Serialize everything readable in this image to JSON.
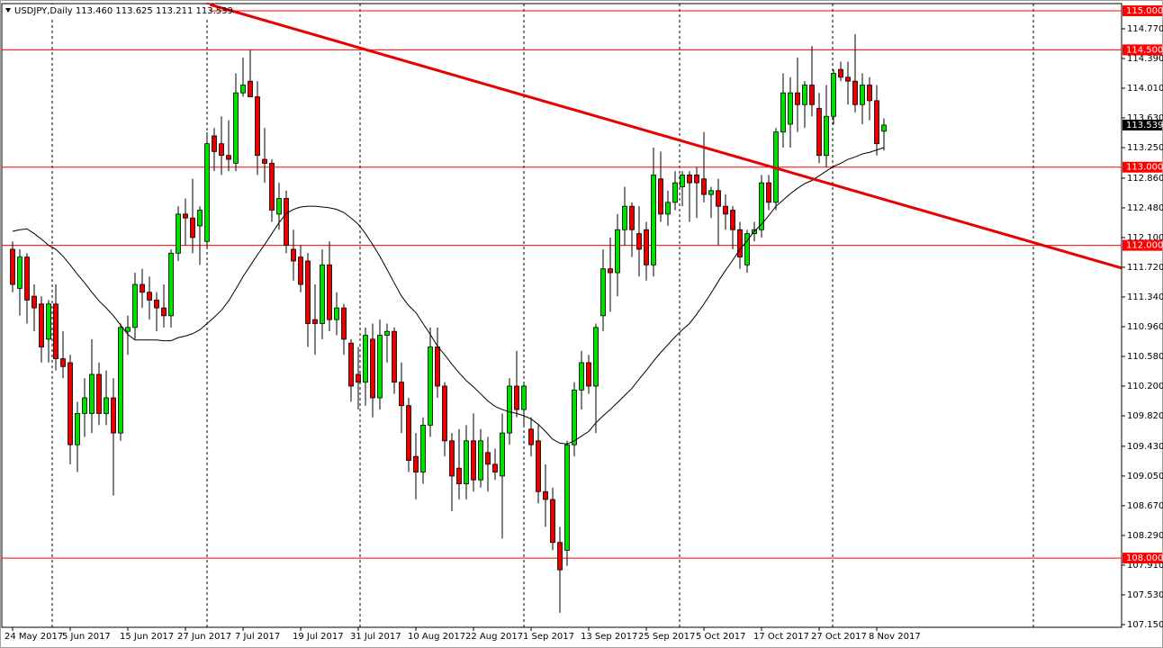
{
  "chart_data": {
    "type": "candlestick",
    "title": "USDJPY,Daily  113.460 113.625 113.211 113.539",
    "categories": [
      "24 May 2017",
      null,
      null,
      null,
      null,
      null,
      null,
      null,
      "5 Jun 2017",
      null,
      null,
      null,
      null,
      null,
      null,
      null,
      "15 Jun 2017",
      null,
      null,
      null,
      null,
      null,
      null,
      null,
      "27 Jun 2017",
      null,
      null,
      null,
      null,
      null,
      null,
      null,
      "7 Jul 2017",
      null,
      null,
      null,
      null,
      null,
      null,
      null,
      "19 Jul 2017",
      null,
      null,
      null,
      null,
      null,
      null,
      null,
      "31 Jul 2017",
      null,
      null,
      null,
      null,
      null,
      null,
      null,
      "10 Aug 2017",
      null,
      null,
      null,
      null,
      null,
      null,
      null,
      "22 Aug 2017",
      null,
      null,
      null,
      null,
      null,
      null,
      null,
      "1 Sep 2017",
      null,
      null,
      null,
      null,
      null,
      null,
      null,
      "13 Sep 2017",
      null,
      null,
      null,
      null,
      null,
      null,
      null,
      "25 Sep 2017",
      null,
      null,
      null,
      null,
      null,
      null,
      null,
      "5 Oct 2017",
      null,
      null,
      null,
      null,
      null,
      null,
      null,
      "17 Oct 2017",
      null,
      null,
      null,
      null,
      null,
      null,
      null,
      "27 Oct 2017",
      null,
      null,
      null,
      null,
      null,
      null,
      null,
      "8 Nov 2017",
      null
    ],
    "open": [
      111.95,
      111.45,
      111.85,
      111.35,
      111.25,
      110.8,
      111.25,
      110.55,
      110.5,
      109.45,
      109.85,
      109.85,
      110.35,
      109.85,
      110.05,
      109.6,
      110.9,
      110.95,
      111.5,
      111.4,
      111.3,
      111.2,
      111.1,
      111.9,
      112.4,
      112.35,
      112.25,
      112.05,
      113.4,
      113.3,
      113.15,
      113.05,
      113.95,
      114.1,
      113.9,
      113.1,
      113.05,
      112.4,
      112.6,
      111.95,
      111.85,
      111.8,
      111.05,
      111.0,
      111.75,
      111.05,
      111.2,
      110.75,
      110.35,
      110.25,
      110.8,
      110.05,
      110.85,
      110.9,
      110.25,
      109.95,
      109.3,
      109.1,
      109.7,
      110.7,
      110.2,
      109.5,
      109.15,
      108.95,
      109.5,
      109.0,
      109.35,
      109.2,
      109.05,
      109.6,
      110.2,
      109.9,
      109.65,
      109.5,
      108.85,
      108.75,
      108.2,
      108.1,
      109.45,
      110.15,
      110.5,
      110.2,
      111.1,
      111.7,
      111.65,
      112.2,
      112.5,
      112.15,
      112.2,
      111.75,
      112.85,
      112.4,
      112.55,
      112.75,
      112.9,
      112.9,
      112.85,
      112.65,
      112.7,
      112.5,
      112.45,
      112.2,
      111.75,
      112.15,
      112.2,
      112.8,
      112.55,
      113.45,
      113.55,
      113.95,
      113.8,
      114.05,
      113.75,
      113.15,
      113.65,
      114.25,
      114.15,
      114.1,
      113.8,
      114.05,
      113.85,
      113.46
    ],
    "high": [
      112.05,
      111.95,
      111.9,
      111.5,
      111.35,
      111.3,
      111.5,
      110.9,
      110.6,
      110.0,
      110.3,
      110.8,
      110.5,
      110.4,
      110.3,
      111.0,
      111.1,
      111.65,
      111.7,
      111.6,
      111.4,
      111.5,
      111.95,
      112.5,
      112.6,
      112.85,
      112.5,
      113.45,
      113.5,
      113.65,
      113.6,
      114.2,
      114.4,
      114.5,
      114.1,
      113.5,
      113.1,
      112.8,
      112.7,
      112.2,
      112.0,
      111.9,
      111.5,
      111.95,
      112.05,
      111.4,
      111.25,
      110.8,
      110.7,
      110.95,
      111.0,
      111.05,
      111.0,
      110.95,
      110.5,
      110.05,
      109.6,
      109.8,
      110.95,
      110.95,
      110.25,
      109.6,
      109.65,
      109.7,
      109.85,
      109.65,
      109.55,
      109.4,
      109.85,
      110.3,
      110.65,
      110.25,
      109.8,
      109.7,
      109.2,
      108.9,
      108.4,
      109.5,
      110.25,
      110.65,
      110.6,
      111.0,
      111.95,
      112.1,
      112.4,
      112.75,
      112.55,
      112.5,
      112.3,
      113.25,
      113.2,
      112.7,
      112.95,
      112.95,
      112.95,
      113.0,
      113.45,
      112.75,
      112.85,
      112.65,
      112.5,
      112.3,
      112.2,
      112.3,
      112.9,
      112.9,
      113.5,
      114.2,
      114.15,
      114.4,
      114.1,
      114.55,
      113.95,
      114.05,
      114.25,
      114.35,
      114.35,
      114.7,
      114.2,
      114.15,
      114.05,
      113.625
    ],
    "low": [
      111.4,
      111.1,
      111.0,
      110.9,
      110.5,
      110.5,
      110.4,
      110.3,
      109.2,
      109.1,
      109.55,
      109.6,
      109.7,
      109.7,
      108.8,
      109.5,
      110.6,
      110.8,
      111.2,
      111.05,
      110.9,
      110.95,
      110.95,
      111.8,
      112.0,
      111.9,
      111.75,
      111.95,
      112.95,
      112.9,
      112.95,
      112.95,
      113.9,
      113.9,
      112.9,
      112.8,
      112.3,
      112.2,
      111.9,
      111.55,
      111.4,
      110.7,
      110.6,
      110.8,
      110.9,
      110.85,
      110.6,
      110.0,
      109.9,
      109.95,
      109.8,
      109.9,
      110.5,
      110.1,
      109.6,
      109.1,
      108.75,
      108.95,
      109.55,
      110.05,
      109.3,
      108.6,
      108.75,
      108.75,
      108.85,
      108.9,
      108.85,
      109.0,
      108.25,
      109.45,
      109.8,
      109.7,
      109.3,
      108.7,
      108.4,
      108.1,
      107.3,
      107.9,
      109.3,
      109.9,
      110.1,
      109.6,
      110.9,
      111.15,
      111.35,
      112.0,
      111.85,
      111.6,
      111.55,
      111.6,
      112.3,
      112.25,
      112.45,
      112.5,
      112.3,
      112.35,
      112.55,
      112.35,
      112.0,
      112.2,
      111.95,
      111.7,
      111.65,
      112.05,
      112.1,
      112.45,
      112.45,
      113.25,
      113.25,
      113.45,
      113.5,
      113.65,
      113.05,
      113.0,
      113.55,
      114.1,
      113.8,
      113.7,
      113.55,
      113.6,
      113.15,
      113.211
    ],
    "close": [
      111.5,
      111.85,
      111.3,
      111.2,
      110.7,
      111.25,
      110.55,
      110.45,
      109.45,
      109.85,
      110.05,
      110.35,
      109.85,
      110.05,
      109.6,
      110.95,
      110.95,
      111.5,
      111.4,
      111.3,
      111.2,
      111.1,
      111.9,
      112.4,
      112.35,
      112.1,
      112.45,
      113.3,
      113.2,
      113.15,
      113.1,
      113.95,
      114.05,
      113.9,
      113.15,
      113.05,
      112.45,
      112.6,
      112.0,
      111.8,
      111.5,
      111.0,
      111.0,
      111.75,
      111.05,
      111.2,
      110.8,
      110.2,
      110.25,
      110.85,
      110.05,
      110.85,
      110.9,
      110.25,
      109.95,
      109.25,
      109.1,
      109.7,
      110.7,
      110.2,
      109.5,
      109.05,
      108.95,
      109.5,
      109.0,
      109.5,
      109.2,
      109.1,
      109.6,
      110.2,
      109.9,
      110.2,
      109.45,
      108.85,
      108.75,
      108.2,
      107.85,
      109.45,
      110.15,
      110.5,
      110.2,
      110.95,
      111.7,
      111.65,
      112.2,
      112.5,
      112.2,
      111.95,
      111.75,
      112.9,
      112.4,
      112.55,
      112.8,
      112.9,
      112.8,
      112.8,
      112.65,
      112.7,
      112.5,
      112.4,
      112.2,
      111.85,
      112.15,
      112.2,
      112.8,
      112.55,
      113.45,
      113.95,
      113.95,
      113.8,
      114.05,
      113.8,
      113.15,
      113.65,
      114.2,
      114.15,
      114.1,
      113.8,
      114.05,
      113.85,
      113.3,
      113.539
    ],
    "up_color": "#00e000",
    "down_color": "#e60000",
    "moving_average": {
      "color": "#000000",
      "values": [
        112.18,
        112.2,
        112.21,
        112.15,
        112.08,
        112.0,
        111.95,
        111.86,
        111.75,
        111.63,
        111.52,
        111.4,
        111.29,
        111.2,
        111.1,
        110.98,
        110.86,
        110.79,
        110.79,
        110.79,
        110.79,
        110.78,
        110.78,
        110.82,
        110.84,
        110.87,
        110.92,
        111.0,
        111.08,
        111.17,
        111.29,
        111.44,
        111.6,
        111.74,
        111.88,
        112.01,
        112.15,
        112.29,
        112.41,
        112.46,
        112.49,
        112.5,
        112.5,
        112.49,
        112.48,
        112.46,
        112.42,
        112.35,
        112.27,
        112.15,
        112.01,
        111.86,
        111.69,
        111.52,
        111.35,
        111.23,
        111.14,
        111.0,
        110.86,
        110.71,
        110.6,
        110.48,
        110.37,
        110.27,
        110.19,
        110.1,
        110.01,
        109.94,
        109.9,
        109.87,
        109.85,
        109.82,
        109.78,
        109.71,
        109.62,
        109.52,
        109.47,
        109.46,
        109.5,
        109.56,
        109.62,
        109.73,
        109.82,
        109.9,
        109.99,
        110.08,
        110.17,
        110.29,
        110.4,
        110.52,
        110.63,
        110.73,
        110.83,
        110.92,
        111.0,
        111.12,
        111.25,
        111.39,
        111.54,
        111.68,
        111.81,
        111.95,
        112.06,
        112.18,
        112.27,
        112.38,
        112.5,
        112.58,
        112.66,
        112.73,
        112.79,
        112.83,
        112.89,
        112.95,
        113.01,
        113.05,
        113.1,
        113.13,
        113.17,
        113.19,
        113.22,
        113.25
      ]
    },
    "trendline": {
      "x": [
        27,
        154
      ],
      "y": [
        115.09,
        111.71
      ],
      "color": "#e60000"
    },
    "hlines": [
      {
        "value": 115,
        "label": "115.000"
      },
      {
        "value": 114.5,
        "label": "114.500"
      },
      {
        "value": 113,
        "label": "113.000"
      },
      {
        "value": 112,
        "label": "112.000"
      },
      {
        "value": 108,
        "label": "108.000"
      }
    ],
    "hline_color": "#ff0000",
    "last_price": {
      "value": 113.539,
      "label": "113.539"
    },
    "ylim": [
      107.115,
      115.092
    ],
    "yticks": [
      {
        "value": 114.77,
        "label": "114.770"
      },
      {
        "value": 114.39,
        "label": "114.390"
      },
      {
        "value": 114.01,
        "label": "114.010"
      },
      {
        "value": 113.63,
        "label": "113.630"
      },
      {
        "value": 113.25,
        "label": "113.250"
      },
      {
        "value": 112.86,
        "label": "112.860"
      },
      {
        "value": 112.48,
        "label": "112.480"
      },
      {
        "value": 112.1,
        "label": "112.100"
      },
      {
        "value": 111.72,
        "label": "111.720"
      },
      {
        "value": 111.34,
        "label": "111.340"
      },
      {
        "value": 110.96,
        "label": "110.960"
      },
      {
        "value": 110.58,
        "label": "110.580"
      },
      {
        "value": 110.2,
        "label": "110.200"
      },
      {
        "value": 109.82,
        "label": "109.820"
      },
      {
        "value": 109.43,
        "label": "109.430"
      },
      {
        "value": 109.05,
        "label": "109.050"
      },
      {
        "value": 108.67,
        "label": "108.670"
      },
      {
        "value": 108.29,
        "label": "108.290"
      },
      {
        "value": 107.91,
        "label": "107.910"
      },
      {
        "value": 107.53,
        "label": "107.530"
      },
      {
        "value": 107.15,
        "label": "107.150"
      }
    ]
  }
}
